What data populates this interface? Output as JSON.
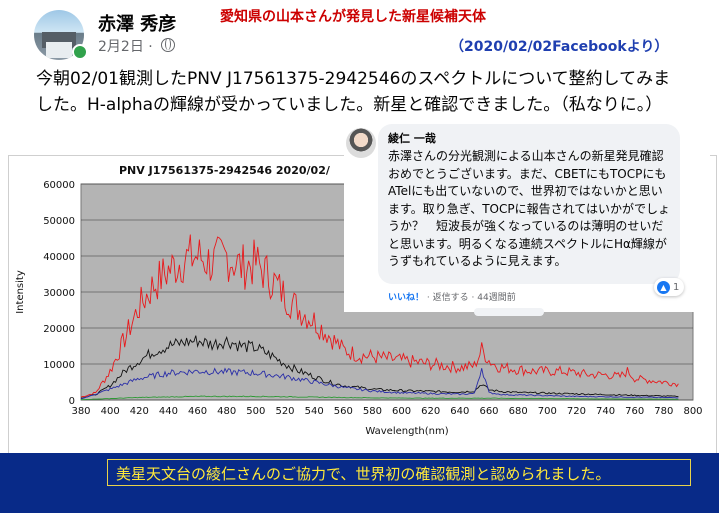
{
  "post": {
    "author": "赤澤 秀彦",
    "date": "2月2日",
    "meta_sep": "·",
    "privacy_icon": "globe-icon",
    "text": "今朝02/01観測したPNV J17561375-2942546のスペクトルについて整約してみました。H-alphaの輝線が受かっていました。新星と確認できました。（私なりに。）"
  },
  "caption": {
    "title": "愛知県の山本さんが発見した新星候補天体",
    "source": "（2020/02/02Facebookより）"
  },
  "chart_data": {
    "type": "line",
    "title": "PNV J17561375-2942546   2020/02/",
    "xlabel": "Wavelength(nm)",
    "ylabel": "Intensity",
    "xlim": [
      380,
      800
    ],
    "ylim": [
      0,
      60000
    ],
    "x_ticks": [
      380,
      400,
      420,
      440,
      460,
      480,
      500,
      520,
      540,
      560,
      580,
      600,
      620,
      640,
      660,
      680,
      700,
      720,
      740,
      760,
      780,
      800
    ],
    "y_ticks": [
      0,
      10000,
      20000,
      30000,
      40000,
      50000,
      60000
    ],
    "grid": true,
    "series": [
      {
        "color": "#e8191c",
        "x": [
          380,
          390,
          400,
          410,
          420,
          430,
          440,
          450,
          460,
          470,
          480,
          490,
          500,
          510,
          520,
          530,
          540,
          550,
          560,
          570,
          580,
          590,
          600,
          610,
          620,
          630,
          640,
          650,
          655,
          660,
          665,
          670,
          680,
          690,
          700,
          710,
          720,
          730,
          740,
          750,
          755,
          760,
          770,
          780,
          790
        ],
        "y": [
          800,
          2000,
          8000,
          17000,
          26000,
          32000,
          36000,
          39000,
          40000,
          38000,
          40000,
          37000,
          38000,
          34000,
          29000,
          25000,
          22000,
          18000,
          14000,
          12500,
          12000,
          11500,
          11000,
          10500,
          10000,
          9500,
          9000,
          9500,
          14000,
          11000,
          9500,
          9000,
          8500,
          8000,
          8000,
          8000,
          7500,
          7000,
          7000,
          6500,
          8000,
          6000,
          5500,
          5000,
          4500
        ]
      },
      {
        "color": "#111111",
        "x": [
          380,
          390,
          400,
          410,
          420,
          430,
          440,
          450,
          460,
          470,
          480,
          490,
          500,
          510,
          520,
          530,
          540,
          550,
          560,
          570,
          580,
          590,
          600,
          620,
          640,
          650,
          655,
          660,
          670,
          680,
          700,
          720,
          740,
          760,
          780,
          790
        ],
        "y": [
          500,
          1500,
          4000,
          8000,
          11000,
          13500,
          15000,
          16000,
          16500,
          15500,
          16500,
          15000,
          14500,
          12500,
          10000,
          8000,
          6500,
          5000,
          4000,
          3500,
          3000,
          2800,
          2600,
          2400,
          2200,
          2500,
          4500,
          2800,
          2300,
          2100,
          1900,
          1700,
          1500,
          1300,
          1100,
          1000
        ]
      },
      {
        "color": "#2b2fa8",
        "x": [
          380,
          400,
          420,
          440,
          460,
          480,
          500,
          520,
          540,
          560,
          580,
          600,
          620,
          640,
          650,
          655,
          660,
          670,
          700,
          720,
          740,
          760,
          780,
          790
        ],
        "y": [
          300,
          3000,
          6000,
          7500,
          8000,
          7800,
          7500,
          6500,
          5000,
          3500,
          2500,
          2000,
          1800,
          1600,
          1800,
          9000,
          2000,
          1500,
          1200,
          1000,
          900,
          800,
          700,
          600
        ]
      },
      {
        "color": "#2f9a36",
        "x": [
          380,
          420,
          460,
          500,
          540,
          580,
          620,
          660,
          700,
          740,
          780,
          790
        ],
        "y": [
          100,
          700,
          1000,
          1000,
          800,
          600,
          500,
          500,
          400,
          300,
          250,
          200
        ]
      }
    ]
  },
  "comment": {
    "name": "綾仁 一哉",
    "text": "赤澤さんの分光観測による山本さんの新星発見確認おめでとうございます。まだ、CBETにもTOCPにもATelにも出ていないので、世界初ではないかと思います。取り急ぎ、TOCPに報告されてはいかがでしょうか？　短波長が強くなっているのは薄明のせいだと思います。明るくなる連続スペクトルにHα輝線がうずもれているように見えます。",
    "like": "いいね！",
    "reply": "返信する",
    "time": "44週間前",
    "reaction_icon": "thumbs-up-icon",
    "reaction_count": "1"
  },
  "banner": {
    "text": "美星天文台の綾仁さんのご協力で、世界初の確認観測と認められました。"
  }
}
